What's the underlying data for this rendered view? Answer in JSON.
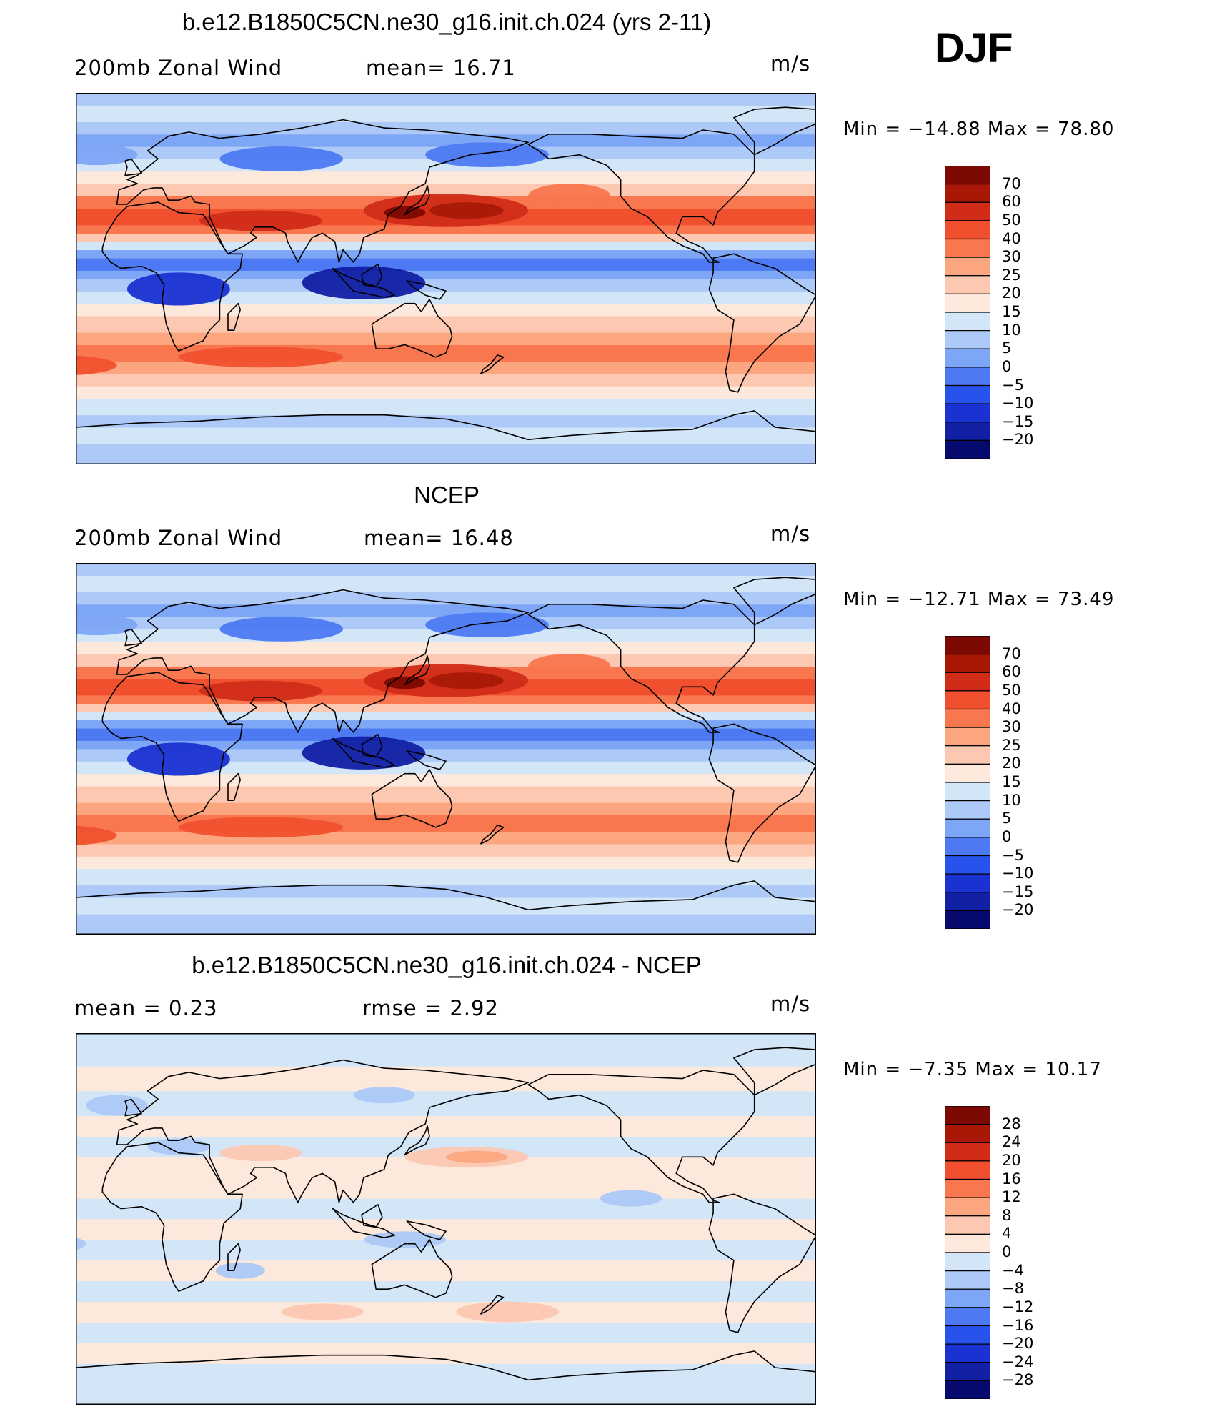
{
  "colors": {
    "pos": [
      "#fde9db",
      "#fcc8b2",
      "#fba67f",
      "#f9774e",
      "#f0502d",
      "#d12c18",
      "#a91806",
      "#7c0a02"
    ],
    "neg": [
      "#d3e6f8",
      "#acc9f7",
      "#7ea6f6",
      "#4d7af2",
      "#2753ec",
      "#1a32d1",
      "#1120a4",
      "#06096e"
    ],
    "land_line": "#000000"
  },
  "season": "DJF",
  "panels": [
    {
      "id": "model",
      "title": "b.e12.B1850C5CN.ne30_g16.init.ch.024 (yrs 2-11)",
      "left_label": "200mb  Zonal  Wind",
      "center_label": "mean=   16.71",
      "units": "m/s",
      "minmax": "Min  =  −14.88  Max  =    78.80",
      "colorbar_labels": [
        "70",
        "60",
        "50",
        "40",
        "30",
        "25",
        "20",
        "15",
        "10",
        "5",
        "0",
        "−5",
        "−10",
        "−15",
        "−20"
      ],
      "anomaly": false
    },
    {
      "id": "obs",
      "title": "NCEP",
      "left_label": "200mb  Zonal  Wind",
      "center_label": "mean=   16.48",
      "units": "m/s",
      "minmax": "Min  =  −12.71  Max  =    73.49",
      "colorbar_labels": [
        "70",
        "60",
        "50",
        "40",
        "30",
        "25",
        "20",
        "15",
        "10",
        "5",
        "0",
        "−5",
        "−10",
        "−15",
        "−20"
      ],
      "anomaly": false
    },
    {
      "id": "diff",
      "title": "b.e12.B1850C5CN.ne30_g16.init.ch.024 - NCEP",
      "left_label": "mean  =      0.23",
      "center_label": "rmse  =      2.92",
      "units": "m/s",
      "minmax": "Min  =     −7.35  Max  =    10.17",
      "colorbar_labels": [
        "28",
        "24",
        "20",
        "16",
        "12",
        "8",
        "4",
        "0",
        "−4",
        "−8",
        "−12",
        "−16",
        "−20",
        "−24",
        "−28"
      ],
      "anomaly": true
    }
  ]
}
